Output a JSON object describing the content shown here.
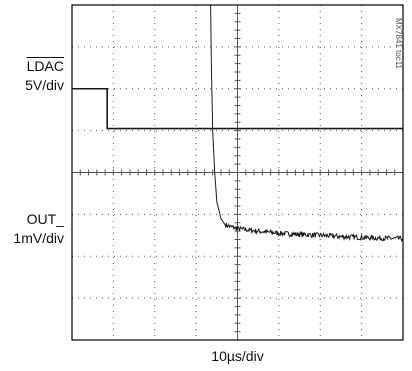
{
  "labels": {
    "ldac_name": "LDAC",
    "ldac_scale": "5V/div",
    "out_name": "OUT_",
    "out_scale": "1mV/div",
    "time_scale": "10µs/div",
    "part_code": "MX7841 toc11"
  },
  "colors": {
    "trace": "#1a1a1a",
    "grid": "#555555",
    "frame": "#000000"
  },
  "chart_data": {
    "type": "line",
    "grid": {
      "divisions_x": 8,
      "divisions_y": 8,
      "dotted": true
    },
    "x_unit": "div",
    "xlim": [
      0,
      8
    ],
    "ylim": [
      0,
      8
    ],
    "series": [
      {
        "trace": "ldac",
        "x": [
          0,
          0.85,
          0.85,
          8
        ],
        "y": [
          6.0,
          6.0,
          5.05,
          5.05
        ]
      },
      {
        "trace": "out",
        "x": [
          3.35,
          3.37,
          3.4,
          3.45,
          3.5,
          3.6,
          3.7,
          3.85,
          4.0,
          4.5,
          5.0,
          5.5,
          6.0,
          6.5,
          7.0,
          7.5,
          8.0
        ],
        "y": [
          8.0,
          6.5,
          5.0,
          4.0,
          3.3,
          2.9,
          2.75,
          2.7,
          2.66,
          2.6,
          2.55,
          2.52,
          2.5,
          2.47,
          2.45,
          2.43,
          2.42
        ]
      }
    ]
  }
}
